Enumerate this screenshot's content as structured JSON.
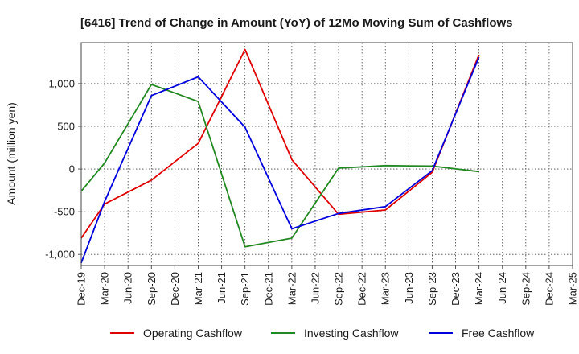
{
  "chart_data": {
    "type": "line",
    "title": "[6416]  Trend of Change in Amount (YoY) of 12Mo Moving Sum of Cashflows",
    "xlabel": "",
    "ylabel": "Amount (million yen)",
    "categories": [
      "Dec-19",
      "Mar-20",
      "Jun-20",
      "Sep-20",
      "Dec-20",
      "Mar-21",
      "Jun-21",
      "Sep-21",
      "Dec-21",
      "Mar-22",
      "Jun-22",
      "Sep-22",
      "Dec-22",
      "Mar-23",
      "Jun-23",
      "Sep-23",
      "Dec-23",
      "Mar-24",
      "Jun-24",
      "Sep-24",
      "Dec-24",
      "Mar-25"
    ],
    "yticks": [
      -1000,
      -500,
      0,
      500,
      1000
    ],
    "ytick_labels": [
      "-1,000",
      "-500",
      "0",
      "500",
      "1,000"
    ],
    "ylim": [
      -1130,
      1480
    ],
    "grid": true,
    "legend_position": "bottom",
    "series": [
      {
        "name": "Operating Cashflow",
        "color": "#e00000",
        "values": [
          -810,
          -410,
          null,
          -130,
          null,
          300,
          null,
          1400,
          null,
          110,
          null,
          -530,
          null,
          -480,
          null,
          -40,
          null,
          1340,
          null,
          null,
          null,
          null
        ]
      },
      {
        "name": "Investing Cashflow",
        "color": "#228822",
        "values": [
          -260,
          70,
          null,
          990,
          null,
          790,
          null,
          -910,
          null,
          -810,
          null,
          10,
          null,
          40,
          null,
          35,
          null,
          -30,
          null,
          null,
          null,
          null
        ]
      },
      {
        "name": "Free Cashflow",
        "color": "#0000dd",
        "values": [
          -1100,
          -380,
          null,
          860,
          null,
          1080,
          null,
          490,
          null,
          -700,
          null,
          -520,
          null,
          -440,
          null,
          -20,
          null,
          1310,
          null,
          null,
          null,
          null
        ]
      }
    ]
  }
}
